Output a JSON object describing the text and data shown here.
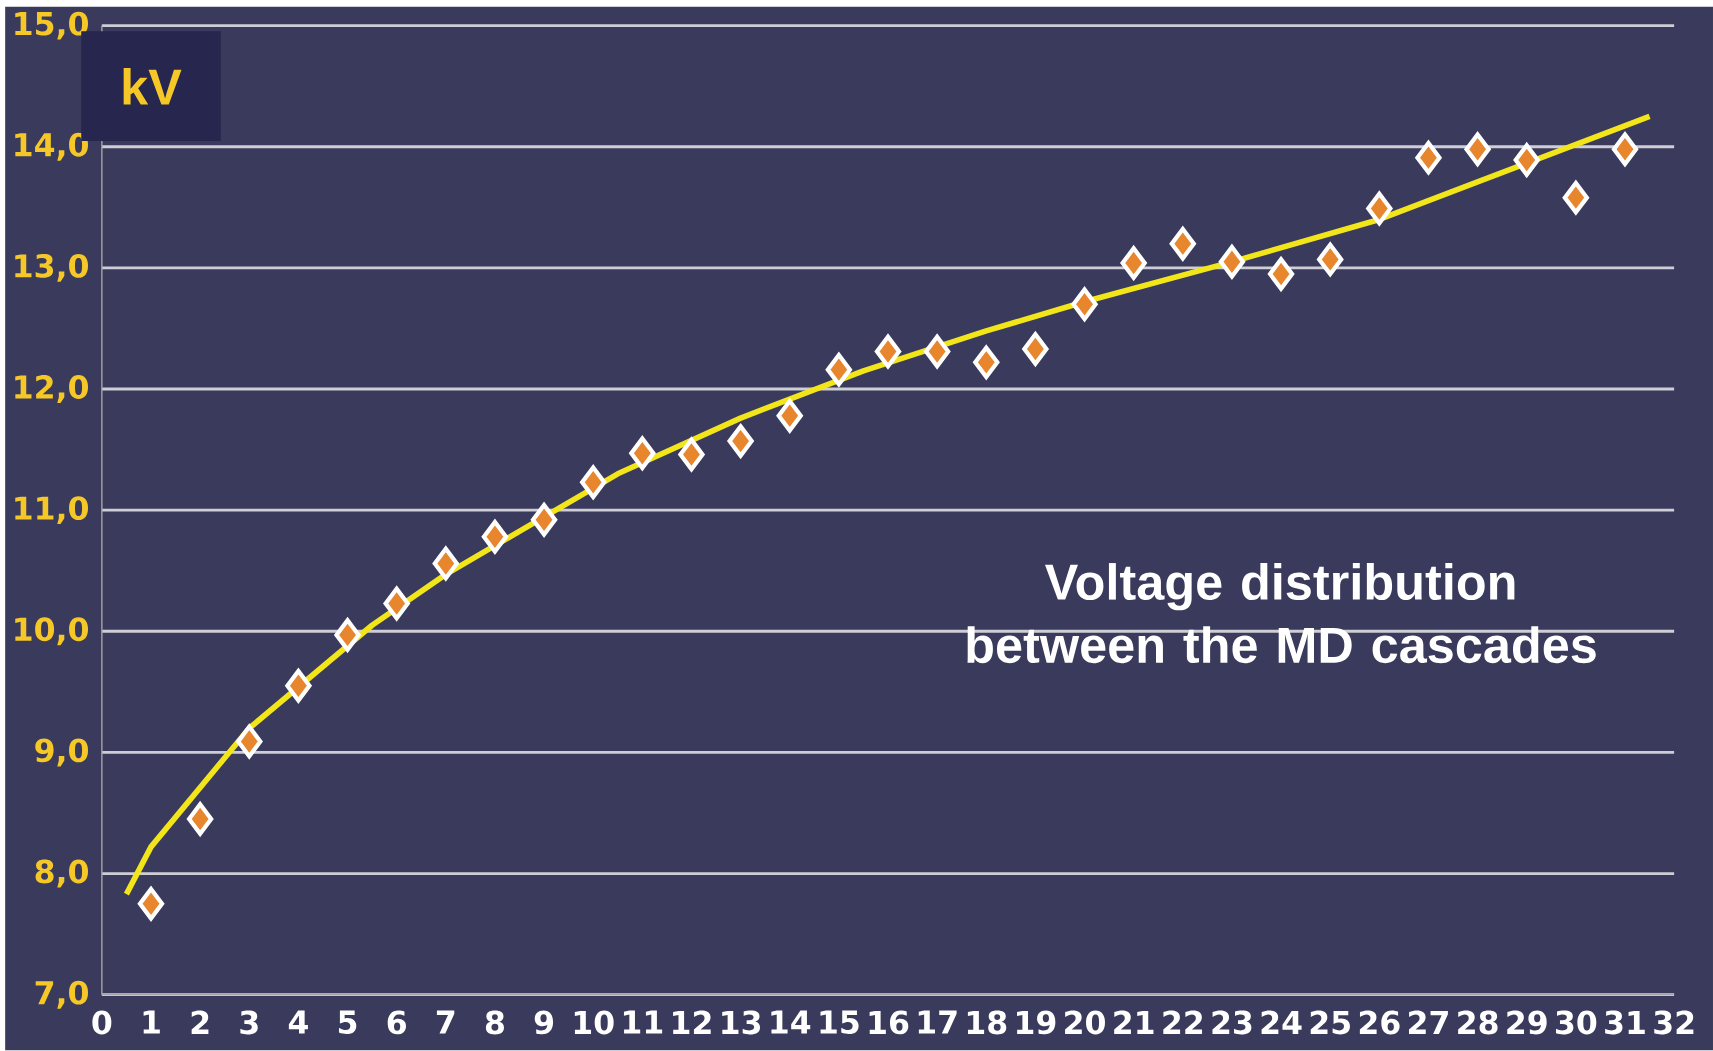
{
  "chart_data": {
    "type": "scatter",
    "title": "Voltage distribution between the MD cascades",
    "ylabel": "kV",
    "xlim": [
      0,
      32
    ],
    "ylim": [
      7,
      15
    ],
    "xticks": [
      0,
      1,
      2,
      3,
      4,
      5,
      6,
      7,
      8,
      9,
      10,
      11,
      12,
      13,
      14,
      15,
      16,
      17,
      18,
      19,
      20,
      21,
      22,
      23,
      24,
      25,
      26,
      27,
      28,
      29,
      30,
      31,
      32
    ],
    "yticks": [
      {
        "value": 7,
        "label": "7,0"
      },
      {
        "value": 8,
        "label": "8,0"
      },
      {
        "value": 9,
        "label": "9,0"
      },
      {
        "value": 10,
        "label": "10,0"
      },
      {
        "value": 11,
        "label": "11,0"
      },
      {
        "value": 12,
        "label": "12,0"
      },
      {
        "value": 13,
        "label": "13,0"
      },
      {
        "value": 14,
        "label": "14,0"
      },
      {
        "value": 15,
        "label": "15,0"
      }
    ],
    "grid": "y",
    "series": [
      {
        "marker": "diamond",
        "color": "#e8862e",
        "x": [
          1,
          2,
          3,
          4,
          5,
          6,
          7,
          8,
          9,
          10,
          11,
          12,
          13,
          14,
          15,
          16,
          17,
          18,
          19,
          20,
          21,
          22,
          23,
          24,
          25,
          26,
          27,
          28,
          29,
          30,
          31
        ],
        "values": [
          7.75,
          8.45,
          9.09,
          9.55,
          9.97,
          10.23,
          10.56,
          10.78,
          10.92,
          11.23,
          11.47,
          11.46,
          11.57,
          11.78,
          12.16,
          12.31,
          12.31,
          12.22,
          12.33,
          12.7,
          13.04,
          13.2,
          13.05,
          12.95,
          13.07,
          13.49,
          13.91,
          13.98,
          13.89,
          13.58,
          13.98
        ]
      },
      {
        "type": "line",
        "marker": "none",
        "color": "#f2e61a",
        "x": [
          0.5,
          1,
          3,
          5.5,
          7,
          10.5,
          13,
          15.5,
          18,
          20,
          23,
          26,
          28,
          31.5
        ],
        "values": [
          7.83,
          8.22,
          9.2,
          10.05,
          10.47,
          11.3,
          11.76,
          12.15,
          12.48,
          12.72,
          13.05,
          13.4,
          13.71,
          14.25
        ]
      }
    ]
  }
}
